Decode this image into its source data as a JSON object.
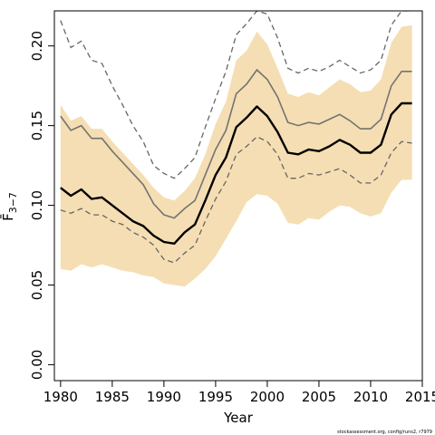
{
  "chart_data": {
    "type": "line",
    "xlabel": "Year",
    "ylabel": "F̄",
    "ylabel_subscript": "3−7",
    "xlim": [
      1979.4,
      2015.0
    ],
    "ylim": [
      -0.01,
      0.222
    ],
    "x_ticks": [
      1980,
      1985,
      1990,
      1995,
      2000,
      2005,
      2010,
      2015
    ],
    "y_ticks": [
      0.0,
      0.05,
      0.1,
      0.15,
      0.2
    ],
    "y_tick_labels": [
      "0.00",
      "0.05",
      "0.10",
      "0.15",
      "0.20"
    ],
    "footnote": "stockassessment.org, config/runs2, r7979",
    "colors": {
      "band": "#f5deb3",
      "estimate": "#000000",
      "inner_line": "#737373",
      "ci_dashed": "#666666"
    },
    "x": [
      1980,
      1981,
      1982,
      1983,
      1984,
      1985,
      1986,
      1987,
      1988,
      1989,
      1990,
      1991,
      1992,
      1993,
      1994,
      1995,
      1996,
      1997,
      1998,
      1999,
      2000,
      2001,
      2002,
      2003,
      2004,
      2005,
      2006,
      2007,
      2008,
      2009,
      2010,
      2011,
      2012,
      2013,
      2014
    ],
    "series": [
      {
        "role": "estimate",
        "values": [
          0.111,
          0.106,
          0.11,
          0.104,
          0.105,
          0.1,
          0.095,
          0.09,
          0.087,
          0.081,
          0.077,
          0.076,
          0.083,
          0.088,
          0.103,
          0.119,
          0.13,
          0.149,
          0.155,
          0.162,
          0.156,
          0.146,
          0.133,
          0.132,
          0.135,
          0.134,
          0.137,
          0.141,
          0.138,
          0.133,
          0.133,
          0.138,
          0.157,
          0.164,
          0.164
        ]
      },
      {
        "role": "inner-upper",
        "values": [
          0.156,
          0.147,
          0.15,
          0.142,
          0.142,
          0.134,
          0.127,
          0.12,
          0.113,
          0.101,
          0.094,
          0.092,
          0.098,
          0.103,
          0.119,
          0.135,
          0.147,
          0.17,
          0.176,
          0.185,
          0.179,
          0.168,
          0.152,
          0.15,
          0.152,
          0.151,
          0.154,
          0.157,
          0.153,
          0.148,
          0.148,
          0.154,
          0.175,
          0.184,
          0.184
        ]
      },
      {
        "role": "inner-lower",
        "values": [
          0.097,
          0.095,
          0.098,
          0.094,
          0.094,
          0.09,
          0.088,
          0.083,
          0.08,
          0.075,
          0.066,
          0.064,
          0.07,
          0.075,
          0.09,
          0.104,
          0.115,
          0.132,
          0.137,
          0.143,
          0.14,
          0.132,
          0.117,
          0.117,
          0.12,
          0.119,
          0.121,
          0.123,
          0.119,
          0.114,
          0.114,
          0.119,
          0.133,
          0.14,
          0.139
        ]
      },
      {
        "role": "dashed-upper",
        "values": [
          0.216,
          0.199,
          0.203,
          0.191,
          0.189,
          0.175,
          0.163,
          0.15,
          0.14,
          0.125,
          0.12,
          0.117,
          0.123,
          0.13,
          0.149,
          0.167,
          0.184,
          0.207,
          0.214,
          0.222,
          0.22,
          0.205,
          0.186,
          0.183,
          0.186,
          0.184,
          0.187,
          0.191,
          0.187,
          0.183,
          0.185,
          0.191,
          0.213,
          0.222,
          0.222
        ]
      },
      {
        "role": "band-upper",
        "values": [
          0.163,
          0.153,
          0.156,
          0.148,
          0.148,
          0.14,
          0.133,
          0.126,
          0.119,
          0.111,
          0.105,
          0.103,
          0.109,
          0.117,
          0.132,
          0.151,
          0.165,
          0.191,
          0.197,
          0.209,
          0.201,
          0.186,
          0.17,
          0.168,
          0.171,
          0.169,
          0.174,
          0.179,
          0.176,
          0.171,
          0.172,
          0.179,
          0.202,
          0.212,
          0.213
        ]
      },
      {
        "role": "band-lower",
        "values": [
          0.06,
          0.059,
          0.063,
          0.061,
          0.063,
          0.061,
          0.059,
          0.058,
          0.056,
          0.055,
          0.051,
          0.05,
          0.049,
          0.054,
          0.06,
          0.068,
          0.079,
          0.09,
          0.102,
          0.107,
          0.106,
          0.101,
          0.089,
          0.088,
          0.092,
          0.091,
          0.096,
          0.1,
          0.099,
          0.095,
          0.093,
          0.095,
          0.108,
          0.116,
          0.116
        ]
      }
    ]
  }
}
